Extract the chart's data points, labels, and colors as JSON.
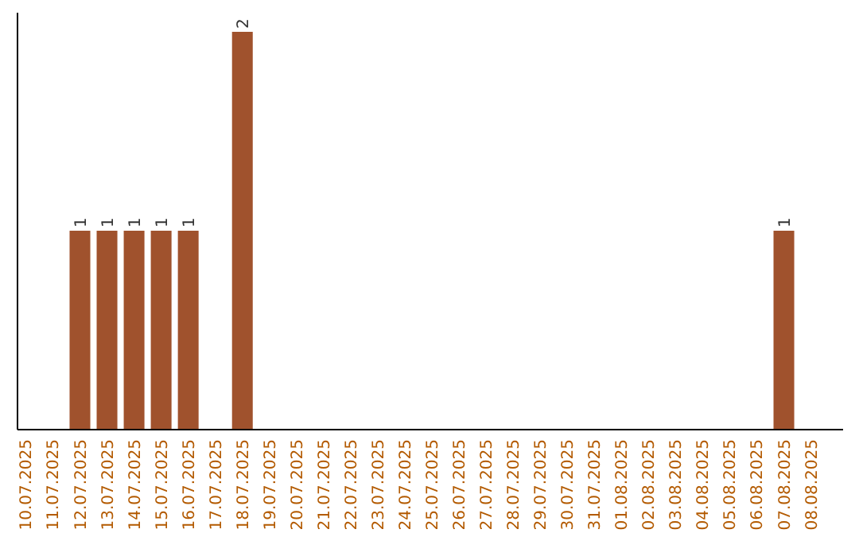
{
  "chart_data": {
    "type": "bar",
    "categories": [
      "10.07.2025",
      "11.07.2025",
      "12.07.2025",
      "13.07.2025",
      "14.07.2025",
      "15.07.2025",
      "16.07.2025",
      "17.07.2025",
      "18.07.2025",
      "19.07.2025",
      "20.07.2025",
      "21.07.2025",
      "22.07.2025",
      "23.07.2025",
      "24.07.2025",
      "25.07.2025",
      "26.07.2025",
      "27.07.2025",
      "28.07.2025",
      "29.07.2025",
      "30.07.2025",
      "31.07.2025",
      "01.08.2025",
      "02.08.2025",
      "03.08.2025",
      "04.08.2025",
      "05.08.2025",
      "06.08.2025",
      "07.08.2025",
      "08.08.2025"
    ],
    "values": [
      0,
      0,
      1,
      1,
      1,
      1,
      1,
      0,
      2,
      0,
      0,
      0,
      0,
      0,
      0,
      0,
      0,
      0,
      0,
      0,
      0,
      0,
      0,
      0,
      0,
      0,
      0,
      0,
      1,
      0
    ],
    "value_labels": [
      null,
      null,
      "1",
      "1",
      "1",
      "1",
      "1",
      null,
      "2",
      null,
      null,
      null,
      null,
      null,
      null,
      null,
      null,
      null,
      null,
      null,
      null,
      null,
      null,
      null,
      null,
      null,
      null,
      null,
      "1",
      null
    ],
    "color": "#a0522d",
    "ylim": [
      0,
      2
    ],
    "tick_labels": "x",
    "grid": false
  }
}
